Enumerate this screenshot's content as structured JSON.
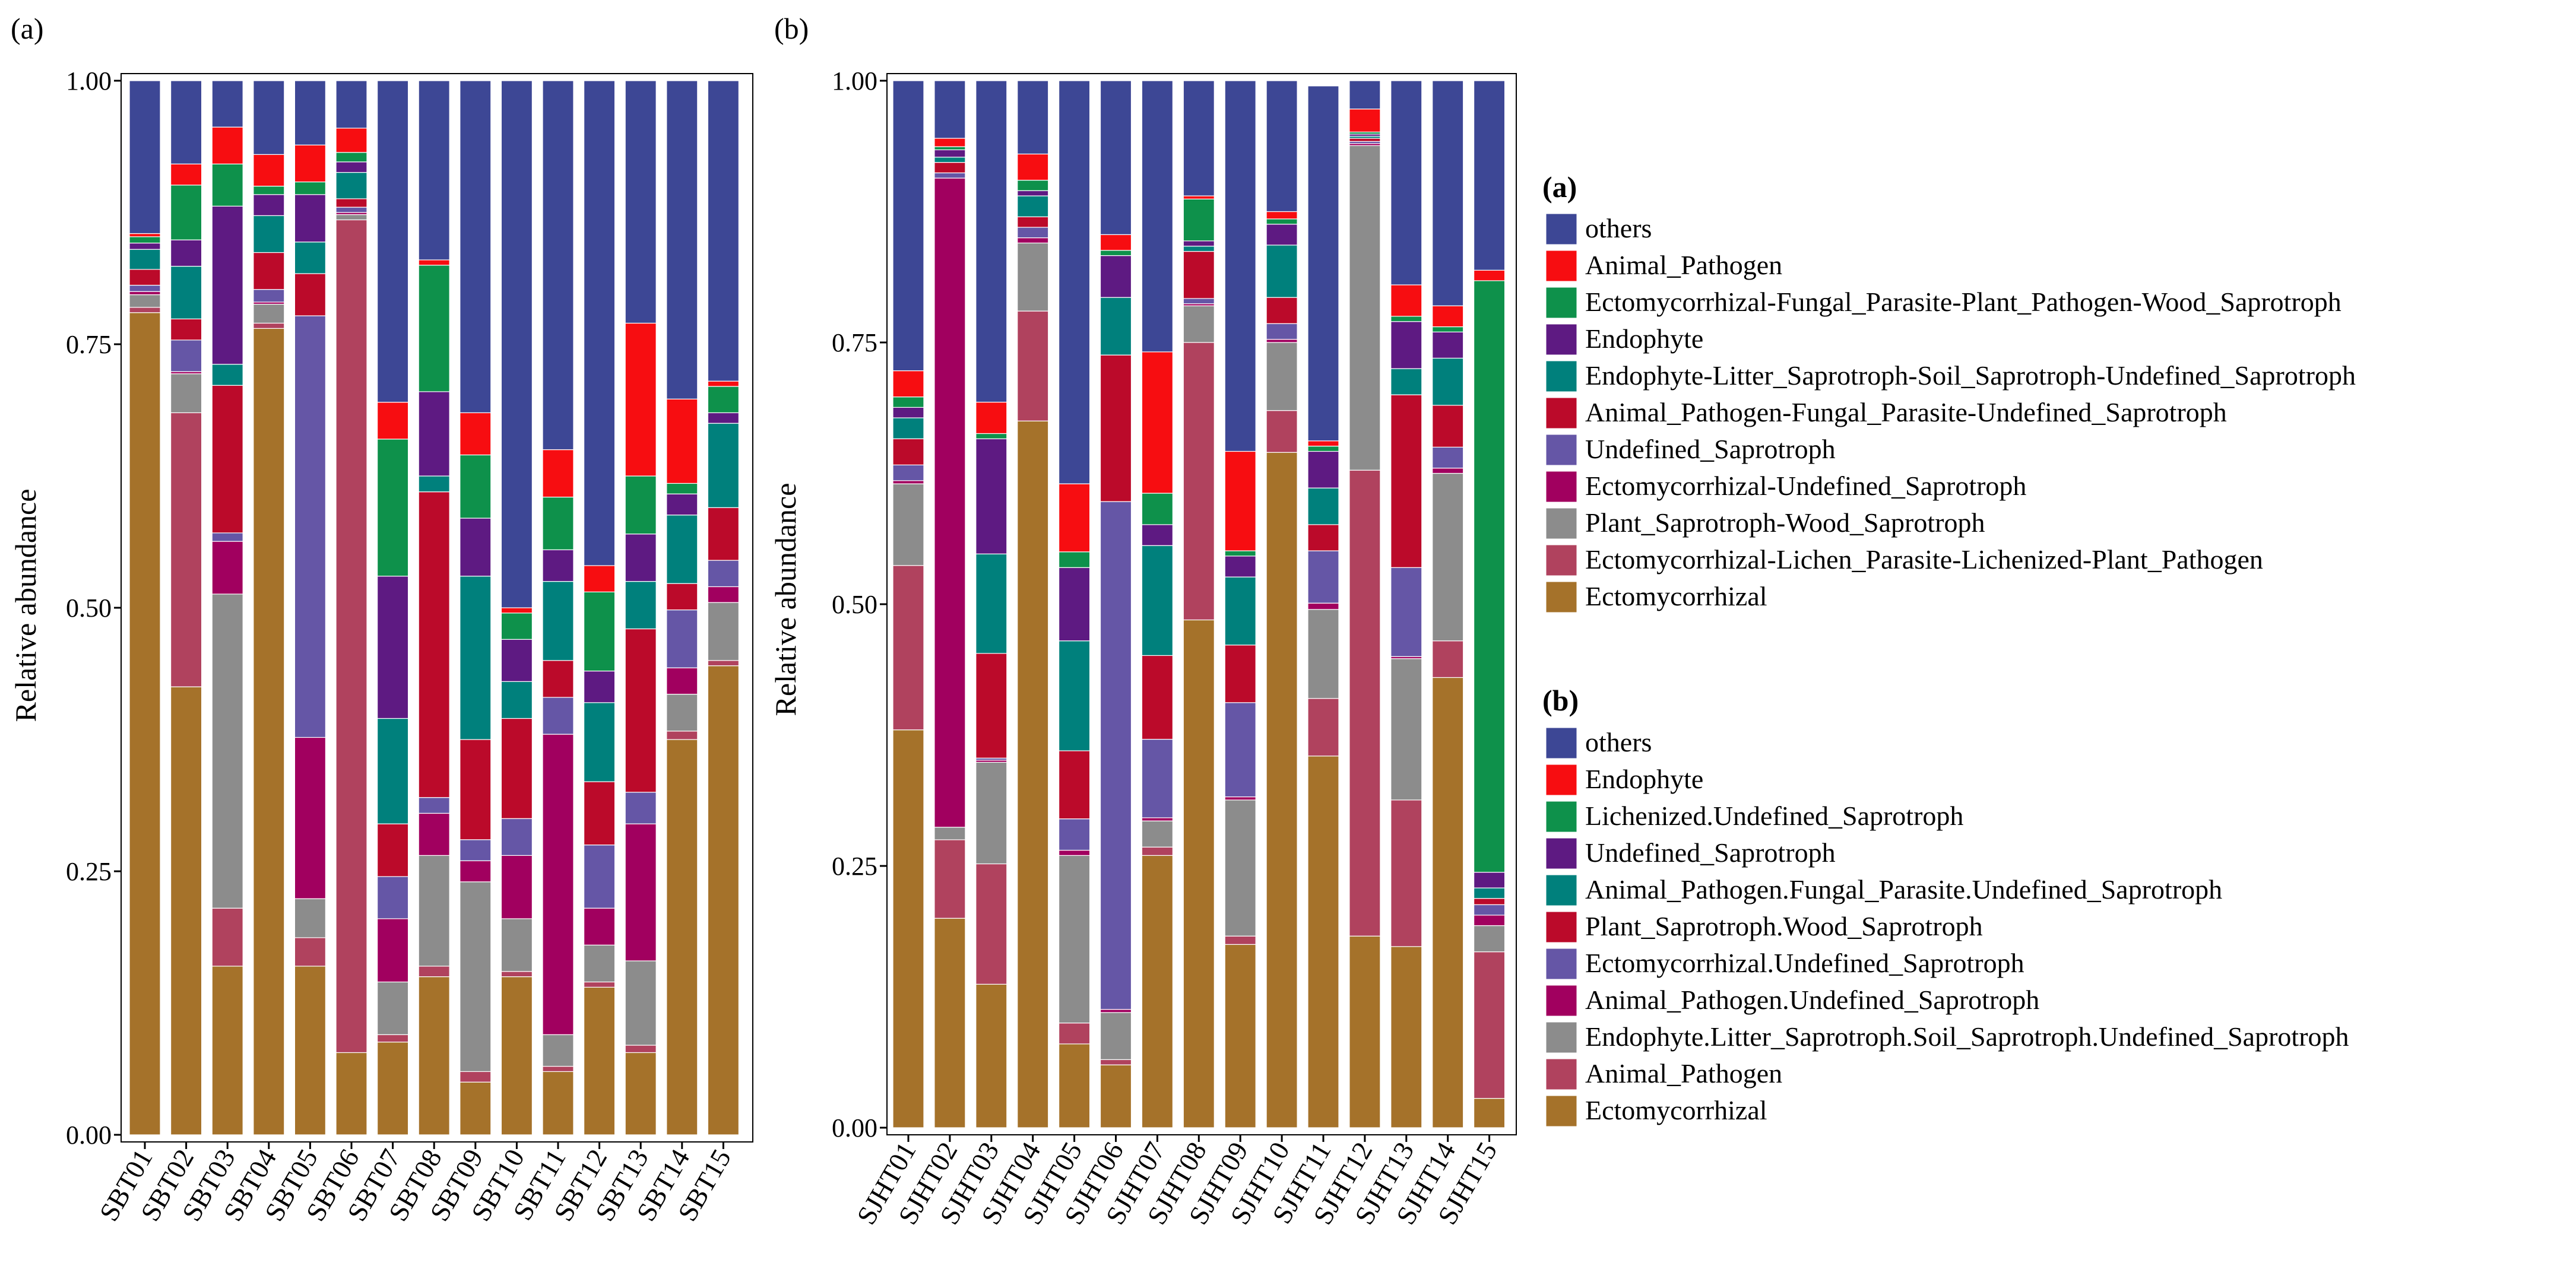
{
  "colors": {
    "Ectomycorrhizal": "#A5722A",
    "Rose": "#B0425E",
    "Gray": "#8C8C8C",
    "Magenta": "#A1005F",
    "Slate": "#6556A6",
    "DarkRed": "#BB0A2A",
    "Teal": "#00807C",
    "Purple": "#5E1A82",
    "Green": "#0E914B",
    "Red": "#F70D11",
    "Others": "#3D4795"
  },
  "chart_data": [
    {
      "type": "bar",
      "stacked": true,
      "panel_label": "(a)",
      "ylabel": "Relative abundance",
      "ylim": [
        0,
        1
      ],
      "yticks": [
        "0.00",
        "0.25",
        "0.50",
        "0.75",
        "1.00"
      ],
      "categories": [
        "SBT01",
        "SBT02",
        "SBT03",
        "SBT04",
        "SBT05",
        "SBT06",
        "SBT07",
        "SBT08",
        "SBT09",
        "SBT10",
        "SBT11",
        "SBT12",
        "SBT13",
        "SBT14",
        "SBT15"
      ],
      "legend_title": "(a)",
      "series": [
        {
          "name": "Ectomycorrhizal",
          "color_key": "Ectomycorrhizal",
          "values": [
            0.78,
            0.425,
            0.16,
            0.765,
            0.16,
            0.078,
            0.088,
            0.15,
            0.05,
            0.15,
            0.06,
            0.14,
            0.078,
            0.375,
            0.445
          ]
        },
        {
          "name": "Ectomycorrhizal-Lichen_Parasite-Lichenized-Plant_Pathogen",
          "color_key": "Rose",
          "values": [
            0.005,
            0.26,
            0.055,
            0.005,
            0.027,
            0.79,
            0.007,
            0.01,
            0.01,
            0.005,
            0.005,
            0.005,
            0.007,
            0.008,
            0.005
          ]
        },
        {
          "name": "Plant_Saprotroph-Wood_Saprotroph",
          "color_key": "Gray",
          "values": [
            0.012,
            0.037,
            0.298,
            0.018,
            0.037,
            0.005,
            0.05,
            0.105,
            0.18,
            0.05,
            0.03,
            0.035,
            0.08,
            0.035,
            0.055
          ]
        },
        {
          "name": "Ectomycorrhizal-Undefined_Saprotroph",
          "color_key": "Magenta",
          "values": [
            0.003,
            0.002,
            0.05,
            0.002,
            0.153,
            0.002,
            0.06,
            0.04,
            0.02,
            0.06,
            0.285,
            0.035,
            0.13,
            0.025,
            0.015
          ]
        },
        {
          "name": "Undefined_Saprotroph",
          "color_key": "Slate",
          "values": [
            0.006,
            0.03,
            0.008,
            0.012,
            0.4,
            0.005,
            0.04,
            0.015,
            0.02,
            0.035,
            0.035,
            0.06,
            0.03,
            0.055,
            0.025
          ]
        },
        {
          "name": "Animal_Pathogen-Fungal_Parasite-Undefined_Saprotroph",
          "color_key": "DarkRed",
          "values": [
            0.015,
            0.02,
            0.14,
            0.035,
            0.04,
            0.008,
            0.05,
            0.29,
            0.095,
            0.095,
            0.035,
            0.06,
            0.155,
            0.025,
            0.05
          ]
        },
        {
          "name": "Endophyte-Litter_Saprotroph-Soil_Saprotroph-Undefined_Saprotroph",
          "color_key": "Teal",
          "values": [
            0.019,
            0.05,
            0.02,
            0.035,
            0.03,
            0.025,
            0.1,
            0.015,
            0.155,
            0.035,
            0.075,
            0.075,
            0.045,
            0.065,
            0.08
          ]
        },
        {
          "name": "Endophyte",
          "color_key": "Purple",
          "values": [
            0.006,
            0.025,
            0.15,
            0.02,
            0.045,
            0.01,
            0.135,
            0.08,
            0.055,
            0.04,
            0.03,
            0.03,
            0.045,
            0.02,
            0.01
          ]
        },
        {
          "name": "Ectomycorrhizal-Fungal_Parasite-Plant_Pathogen-Wood_Saprotroph",
          "color_key": "Green",
          "values": [
            0.006,
            0.052,
            0.04,
            0.008,
            0.012,
            0.009,
            0.13,
            0.12,
            0.06,
            0.025,
            0.05,
            0.075,
            0.055,
            0.01,
            0.025
          ]
        },
        {
          "name": "Animal_Pathogen",
          "color_key": "Red",
          "values": [
            0.003,
            0.02,
            0.035,
            0.03,
            0.035,
            0.023,
            0.035,
            0.005,
            0.04,
            0.005,
            0.045,
            0.025,
            0.145,
            0.08,
            0.005
          ]
        },
        {
          "name": "others",
          "color_key": "Others",
          "values": [
            0.145,
            0.079,
            0.044,
            0.07,
            0.061,
            0.045,
            0.305,
            0.17,
            0.315,
            0.5,
            0.35,
            0.46,
            0.23,
            0.302,
            0.285
          ]
        }
      ]
    },
    {
      "type": "bar",
      "stacked": true,
      "panel_label": "(b)",
      "ylabel": "Relative abundance",
      "ylim": [
        0,
        1
      ],
      "yticks": [
        "0.00",
        "0.25",
        "0.50",
        "0.75",
        "1.00"
      ],
      "categories": [
        "SJHT01",
        "SJHT02",
        "SJHT03",
        "SJHT04",
        "SJHT05",
        "SJHT06",
        "SJHT07",
        "SJHT08",
        "SJHT09",
        "SJHT10",
        "SJHT11",
        "SJHT12",
        "SJHT13",
        "SJHT14",
        "SJHT15"
      ],
      "legend_title": "(b)",
      "series": [
        {
          "name": "Ectomycorrhizal",
          "color_key": "Ectomycorrhizal",
          "values": [
            0.38,
            0.2,
            0.137,
            0.675,
            0.08,
            0.06,
            0.26,
            0.485,
            0.175,
            0.645,
            0.355,
            0.183,
            0.173,
            0.43,
            0.028
          ]
        },
        {
          "name": "Animal_Pathogen",
          "color_key": "Rose",
          "values": [
            0.157,
            0.075,
            0.115,
            0.105,
            0.02,
            0.005,
            0.008,
            0.265,
            0.008,
            0.04,
            0.055,
            0.445,
            0.14,
            0.035,
            0.14
          ]
        },
        {
          "name": "Endophyte.Litter_Saprotroph.Soil_Saprotroph.Undefined_Saprotroph",
          "color_key": "Gray",
          "values": [
            0.078,
            0.012,
            0.097,
            0.065,
            0.16,
            0.045,
            0.025,
            0.035,
            0.13,
            0.065,
            0.085,
            0.31,
            0.135,
            0.16,
            0.025
          ]
        },
        {
          "name": "Animal_Pathogen.Undefined_Saprotroph",
          "color_key": "Magenta",
          "values": [
            0.003,
            0.62,
            0.002,
            0.005,
            0.005,
            0.003,
            0.003,
            0.002,
            0.003,
            0.003,
            0.006,
            0.002,
            0.002,
            0.005,
            0.01
          ]
        },
        {
          "name": "Ectomycorrhizal.Undefined_Saprotroph",
          "color_key": "Slate",
          "values": [
            0.015,
            0.005,
            0.002,
            0.01,
            0.03,
            0.485,
            0.075,
            0.005,
            0.09,
            0.015,
            0.05,
            0.002,
            0.085,
            0.02,
            0.01
          ]
        },
        {
          "name": "Plant_Saprotroph.Wood_Saprotroph",
          "color_key": "DarkRed",
          "values": [
            0.025,
            0.01,
            0.1,
            0.01,
            0.065,
            0.14,
            0.08,
            0.045,
            0.055,
            0.025,
            0.025,
            0.003,
            0.165,
            0.04,
            0.006
          ]
        },
        {
          "name": "Animal_Pathogen.Fungal_Parasite.Undefined_Saprotroph",
          "color_key": "Teal",
          "values": [
            0.02,
            0.005,
            0.095,
            0.02,
            0.105,
            0.055,
            0.105,
            0.005,
            0.065,
            0.05,
            0.035,
            0.002,
            0.025,
            0.045,
            0.01
          ]
        },
        {
          "name": "Undefined_Saprotroph",
          "color_key": "Purple",
          "values": [
            0.01,
            0.007,
            0.11,
            0.005,
            0.07,
            0.04,
            0.02,
            0.005,
            0.02,
            0.02,
            0.035,
            0.002,
            0.045,
            0.025,
            0.015
          ]
        },
        {
          "name": "Lichenized.Undefined_Saprotroph",
          "color_key": "Green",
          "values": [
            0.01,
            0.003,
            0.005,
            0.01,
            0.015,
            0.005,
            0.03,
            0.04,
            0.005,
            0.005,
            0.005,
            0.002,
            0.005,
            0.005,
            0.565
          ]
        },
        {
          "name": "Endophyte",
          "color_key": "Red",
          "values": [
            0.025,
            0.008,
            0.03,
            0.025,
            0.065,
            0.015,
            0.135,
            0.003,
            0.095,
            0.007,
            0.005,
            0.022,
            0.03,
            0.02,
            0.01
          ]
        },
        {
          "name": "others",
          "color_key": "Others",
          "values": [
            0.277,
            0.055,
            0.307,
            0.07,
            0.385,
            0.147,
            0.259,
            0.11,
            0.354,
            0.125,
            0.339,
            0.027,
            0.195,
            0.215,
            0.181
          ]
        }
      ]
    }
  ]
}
